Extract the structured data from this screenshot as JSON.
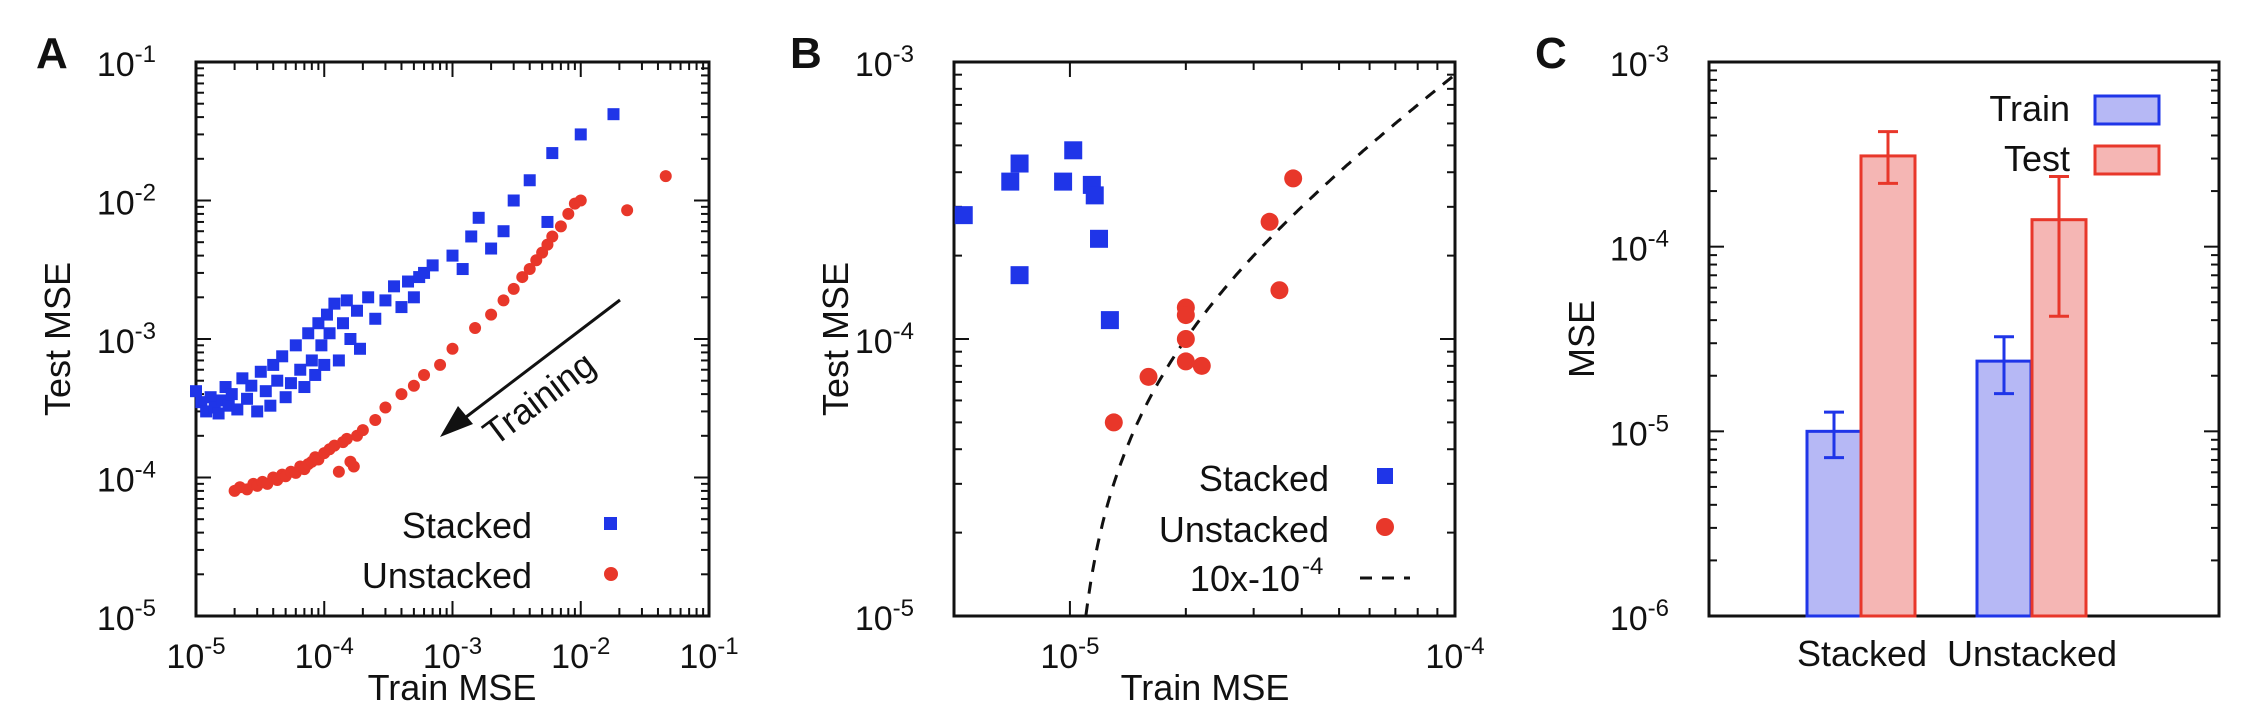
{
  "figure": {
    "panels": [
      "A",
      "B",
      "C"
    ]
  },
  "chart_data": [
    {
      "id": "A",
      "type": "scatter",
      "xlabel": "Train MSE",
      "ylabel": "Test MSE",
      "xscale": "log",
      "yscale": "log",
      "xlim": [
        1e-05,
        0.1
      ],
      "ylim": [
        1e-05,
        0.1
      ],
      "xticks": [
        {
          "base": "10",
          "exp": "-5"
        },
        {
          "base": "10",
          "exp": "-4"
        },
        {
          "base": "10",
          "exp": "-3"
        },
        {
          "base": "10",
          "exp": "-2"
        },
        {
          "base": "10",
          "exp": "-1"
        }
      ],
      "yticks": [
        {
          "base": "10",
          "exp": "-5"
        },
        {
          "base": "10",
          "exp": "-4"
        },
        {
          "base": "10",
          "exp": "-3"
        },
        {
          "base": "10",
          "exp": "-2"
        },
        {
          "base": "10",
          "exp": "-1"
        }
      ],
      "annotation": "Training",
      "legend_position": "bottom-right",
      "series": [
        {
          "name": "Stacked",
          "marker": "square",
          "color": "#1f35e8",
          "points": [
            [
              1e-05,
              0.00042
            ],
            [
              1.1e-05,
              0.00035
            ],
            [
              1.2e-05,
              0.0003
            ],
            [
              1.3e-05,
              0.00038
            ],
            [
              1.4e-05,
              0.00032
            ],
            [
              1.5e-05,
              0.00029
            ],
            [
              1.6e-05,
              0.00036
            ],
            [
              1.7e-05,
              0.00045
            ],
            [
              1.8e-05,
              0.00033
            ],
            [
              1.9e-05,
              0.0004
            ],
            [
              2.1e-05,
              0.00031
            ],
            [
              2.3e-05,
              0.00052
            ],
            [
              2.5e-05,
              0.00037
            ],
            [
              2.7e-05,
              0.00046
            ],
            [
              3e-05,
              0.0003
            ],
            [
              3.2e-05,
              0.00058
            ],
            [
              3.5e-05,
              0.00042
            ],
            [
              3.8e-05,
              0.00033
            ],
            [
              4e-05,
              0.00065
            ],
            [
              4.3e-05,
              0.0005
            ],
            [
              4.7e-05,
              0.00075
            ],
            [
              5e-05,
              0.00038
            ],
            [
              5.5e-05,
              0.00048
            ],
            [
              6e-05,
              0.0009
            ],
            [
              6.5e-05,
              0.0006
            ],
            [
              7e-05,
              0.00045
            ],
            [
              7.5e-05,
              0.0011
            ],
            [
              8e-05,
              0.0007
            ],
            [
              8.5e-05,
              0.00055
            ],
            [
              9e-05,
              0.0013
            ],
            [
              9.5e-05,
              0.0009
            ],
            [
              0.0001,
              0.00065
            ],
            [
              0.000105,
              0.0015
            ],
            [
              0.00011,
              0.0011
            ],
            [
              0.00012,
              0.0018
            ],
            [
              0.00013,
              0.0007
            ],
            [
              0.00014,
              0.0013
            ],
            [
              0.00015,
              0.0019
            ],
            [
              0.00016,
              0.001
            ],
            [
              0.00018,
              0.0016
            ],
            [
              0.00019,
              0.00085
            ],
            [
              0.00022,
              0.002
            ],
            [
              0.00025,
              0.0014
            ],
            [
              0.0003,
              0.0019
            ],
            [
              0.00035,
              0.0024
            ],
            [
              0.0004,
              0.0017
            ],
            [
              0.00045,
              0.0026
            ],
            [
              0.0005,
              0.002
            ],
            [
              0.00055,
              0.0028
            ],
            [
              0.0006,
              0.003
            ],
            [
              0.0007,
              0.0034
            ],
            [
              0.001,
              0.004
            ],
            [
              0.0012,
              0.0032
            ],
            [
              0.0014,
              0.0055
            ],
            [
              0.0016,
              0.0075
            ],
            [
              0.002,
              0.0045
            ],
            [
              0.0025,
              0.006
            ],
            [
              0.003,
              0.01
            ],
            [
              0.004,
              0.014
            ],
            [
              0.0055,
              0.007
            ],
            [
              0.006,
              0.022
            ],
            [
              0.01,
              0.03
            ],
            [
              0.018,
              0.042
            ]
          ]
        },
        {
          "name": "Unstacked",
          "marker": "circle",
          "color": "#e8372a",
          "points": [
            [
              2e-05,
              8e-05
            ],
            [
              2.2e-05,
              8.5e-05
            ],
            [
              2.5e-05,
              8.2e-05
            ],
            [
              2.8e-05,
              9e-05
            ],
            [
              3e-05,
              8.7e-05
            ],
            [
              3.3e-05,
              9.3e-05
            ],
            [
              3.6e-05,
              9e-05
            ],
            [
              4e-05,
              0.0001
            ],
            [
              4.3e-05,
              9.6e-05
            ],
            [
              4.7e-05,
              0.000105
            ],
            [
              5e-05,
              0.000102
            ],
            [
              5.5e-05,
              0.00011
            ],
            [
              6e-05,
              0.000108
            ],
            [
              6.5e-05,
              0.00012
            ],
            [
              7e-05,
              0.000115
            ],
            [
              7.5e-05,
              0.000125
            ],
            [
              8e-05,
              0.00013
            ],
            [
              8.5e-05,
              0.00014
            ],
            [
              9e-05,
              0.000135
            ],
            [
              0.0001,
              0.00015
            ],
            [
              0.00011,
              0.00016
            ],
            [
              0.00012,
              0.00017
            ],
            [
              0.00013,
              0.00011
            ],
            [
              0.00014,
              0.00018
            ],
            [
              0.00015,
              0.00019
            ],
            [
              0.00016,
              0.00013
            ],
            [
              0.00017,
              0.00012
            ],
            [
              0.00018,
              0.0002
            ],
            [
              0.0002,
              0.00022
            ],
            [
              0.00025,
              0.00026
            ],
            [
              0.0003,
              0.00032
            ],
            [
              0.0004,
              0.0004
            ],
            [
              0.0005,
              0.00046
            ],
            [
              0.0006,
              0.00055
            ],
            [
              0.0008,
              0.00065
            ],
            [
              0.001,
              0.00085
            ],
            [
              0.0015,
              0.0012
            ],
            [
              0.002,
              0.0015
            ],
            [
              0.0025,
              0.0019
            ],
            [
              0.003,
              0.0023
            ],
            [
              0.0035,
              0.0028
            ],
            [
              0.004,
              0.0032
            ],
            [
              0.0045,
              0.0037
            ],
            [
              0.005,
              0.0042
            ],
            [
              0.0055,
              0.0048
            ],
            [
              0.006,
              0.0055
            ],
            [
              0.007,
              0.0065
            ],
            [
              0.008,
              0.008
            ],
            [
              0.009,
              0.0095
            ],
            [
              0.01,
              0.01
            ],
            [
              0.023,
              0.0085
            ],
            [
              0.046,
              0.015
            ]
          ]
        }
      ]
    },
    {
      "id": "B",
      "type": "scatter",
      "xlabel": "Train MSE",
      "ylabel": "Test MSE",
      "xscale": "log",
      "yscale": "log",
      "xlim": [
        5e-06,
        0.0001
      ],
      "ylim": [
        1e-05,
        0.001
      ],
      "xticks": [
        {
          "value": 1e-05,
          "base": "10",
          "exp": "-5"
        },
        {
          "value": 0.0001,
          "base": "10",
          "exp": "-4"
        }
      ],
      "yticks": [
        {
          "value": 1e-05,
          "base": "10",
          "exp": "-5"
        },
        {
          "value": 0.0001,
          "base": "10",
          "exp": "-4"
        },
        {
          "value": 0.001,
          "base": "10",
          "exp": "-3"
        }
      ],
      "legend_position": "bottom-right",
      "series": [
        {
          "name": "Stacked",
          "marker": "square",
          "color": "#1f35e8",
          "points": [
            [
              5.3e-06,
              0.00028
            ],
            [
              7e-06,
              0.00037
            ],
            [
              7.4e-06,
              0.00043
            ],
            [
              7.4e-06,
              0.00017
            ],
            [
              9.6e-06,
              0.00037
            ],
            [
              1.02e-05,
              0.00048
            ],
            [
              1.14e-05,
              0.00036
            ],
            [
              1.16e-05,
              0.00033
            ],
            [
              1.19e-05,
              0.00023
            ],
            [
              1.27e-05,
              0.000117
            ]
          ]
        },
        {
          "name": "Unstacked",
          "marker": "circle",
          "color": "#e8372a",
          "points": [
            [
              1.3e-05,
              5e-05
            ],
            [
              1.6e-05,
              7.3e-05
            ],
            [
              2e-05,
              0.00013
            ],
            [
              2e-05,
              0.000122
            ],
            [
              2e-05,
              0.0001
            ],
            [
              2e-05,
              8.3e-05
            ],
            [
              2.2e-05,
              8e-05
            ],
            [
              3.3e-05,
              0.000265
            ],
            [
              3.5e-05,
              0.00015
            ],
            [
              3.8e-05,
              0.00038
            ]
          ]
        },
        {
          "name": "10x-10",
          "legend_label_base": "10x-10",
          "legend_label_exp": "-4",
          "type": "line",
          "style": "dashed",
          "color": "#111111",
          "formula": "y = 10*x - 1e-4"
        }
      ]
    },
    {
      "id": "C",
      "type": "bar",
      "xlabel": "",
      "ylabel": "MSE",
      "yscale": "log",
      "ylim": [
        1e-06,
        0.001
      ],
      "yticks": [
        {
          "value": 1e-06,
          "base": "10",
          "exp": "-6"
        },
        {
          "value": 1e-05,
          "base": "10",
          "exp": "-5"
        },
        {
          "value": 0.0001,
          "base": "10",
          "exp": "-4"
        },
        {
          "value": 0.001,
          "base": "10",
          "exp": "-3"
        }
      ],
      "categories": [
        "Stacked",
        "Unstacked"
      ],
      "legend_position": "top-right",
      "series": [
        {
          "name": "Train",
          "color": "#1f35e8",
          "fill": "#b6b8f5",
          "values": [
            1e-05,
            2.4e-05
          ],
          "err_low": [
            7.2e-06,
            1.6e-05
          ],
          "err_high": [
            1.27e-05,
            3.25e-05
          ]
        },
        {
          "name": "Test",
          "color": "#e8372a",
          "fill": "#f5b6b4",
          "values": [
            0.00031,
            0.00014
          ],
          "err_low": [
            0.00022,
            4.2e-05
          ],
          "err_high": [
            0.00042,
            0.00024
          ]
        }
      ]
    }
  ]
}
